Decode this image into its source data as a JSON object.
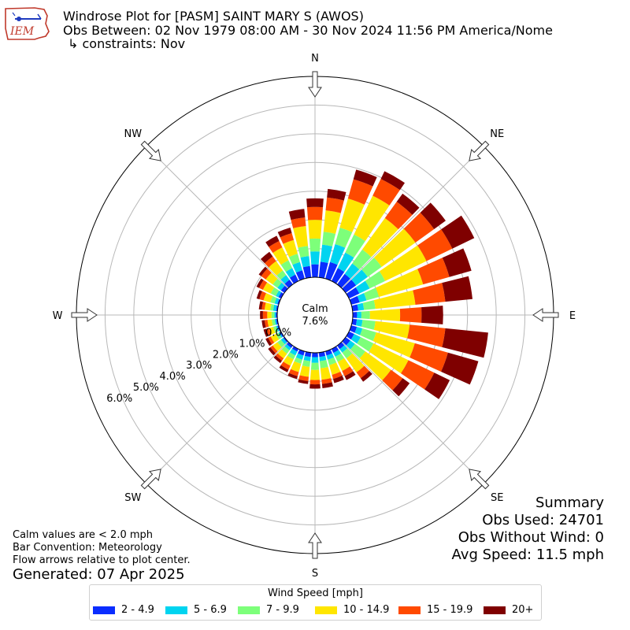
{
  "header": {
    "title": "Windrose Plot for [PASM] SAINT MARY S (AWOS)",
    "obs_between": "Obs Between: 02 Nov 1979 08:00 AM - 30 Nov 2024 11:56 PM America/Nome",
    "constraints": "↳ constraints: Nov",
    "logo_text": "IEM"
  },
  "notes": {
    "calm": "Calm values are < 2.0 mph",
    "bar_convention": "Bar Convention: Meteorology",
    "flow": "Flow arrows relative to plot center.",
    "generated": "Generated: 07 Apr 2025"
  },
  "summary": {
    "title": "Summary",
    "obs_used": "Obs Used: 24701",
    "obs_without_wind": "Obs Without Wind: 0",
    "avg_speed": "Avg Speed: 11.5 mph"
  },
  "legend": {
    "title": "Wind Speed [mph]",
    "items": [
      {
        "label": "2 - 4.9",
        "color": "#0a2dff"
      },
      {
        "label": "5 - 6.9",
        "color": "#00d4f0"
      },
      {
        "label": "7 - 9.9",
        "color": "#7dff7a"
      },
      {
        "label": "10 - 14.9",
        "color": "#ffe600"
      },
      {
        "label": "15 - 19.9",
        "color": "#ff4a00"
      },
      {
        "label": "20+",
        "color": "#7f0000"
      }
    ]
  },
  "chart_data": {
    "type": "windrose",
    "calm_label": "Calm",
    "calm_value": "7.6%",
    "center_offset_pct": 1.0,
    "r_max_pct": 7.0,
    "radial_ticks": [
      0,
      1,
      2,
      3,
      4,
      5,
      6
    ],
    "radial_tick_labels": [
      "0.0%",
      "1.0%",
      "2.0%",
      "3.0%",
      "4.0%",
      "5.0%",
      "6.0%"
    ],
    "compass_labels": [
      "N",
      "NE",
      "E",
      "SE",
      "S",
      "SW",
      "W",
      "NW"
    ],
    "speed_bins": [
      "2 - 4.9",
      "5 - 6.9",
      "7 - 9.9",
      "10 - 14.9",
      "15 - 19.9",
      "20+"
    ],
    "bin_colors": [
      "#0a2dff",
      "#00d4f0",
      "#7dff7a",
      "#ffe600",
      "#ff4a00",
      "#7f0000"
    ],
    "directions_deg": [
      0,
      10,
      20,
      30,
      40,
      50,
      60,
      70,
      80,
      90,
      100,
      110,
      120,
      130,
      140,
      150,
      160,
      170,
      180,
      190,
      200,
      210,
      220,
      230,
      240,
      250,
      260,
      270,
      280,
      290,
      300,
      310,
      320,
      330,
      340,
      350
    ],
    "cumulative": [
      [
        0.45,
        0.9,
        1.35,
        2.0,
        2.45,
        2.75
      ],
      [
        0.55,
        1.15,
        1.6,
        2.35,
        2.8,
        3.1
      ],
      [
        0.6,
        1.25,
        1.85,
        2.9,
        3.6,
        3.95
      ],
      [
        0.5,
        1.1,
        1.8,
        3.3,
        3.95,
        4.25
      ],
      [
        0.45,
        0.9,
        1.5,
        2.85,
        3.55,
        3.9
      ],
      [
        0.45,
        0.95,
        1.55,
        3.0,
        3.8,
        4.3
      ],
      [
        0.4,
        0.8,
        1.4,
        3.0,
        4.0,
        4.85
      ],
      [
        0.3,
        0.55,
        1.0,
        2.6,
        3.55,
        4.35
      ],
      [
        0.2,
        0.4,
        0.8,
        2.2,
        3.25,
        4.2
      ],
      [
        0.15,
        0.3,
        0.6,
        1.65,
        2.4,
        3.15
      ],
      [
        0.15,
        0.35,
        0.8,
        2.0,
        3.25,
        4.75
      ],
      [
        0.2,
        0.4,
        0.9,
        2.3,
        3.5,
        4.6
      ],
      [
        0.2,
        0.45,
        0.95,
        2.3,
        3.3,
        3.9
      ],
      [
        0.2,
        0.4,
        0.85,
        1.95,
        2.45,
        2.75
      ],
      [
        0.15,
        0.3,
        0.55,
        1.15,
        1.4,
        1.55
      ],
      [
        0.15,
        0.3,
        0.5,
        0.85,
        1.05,
        1.2
      ],
      [
        0.15,
        0.3,
        0.5,
        0.85,
        1.0,
        1.15
      ],
      [
        0.15,
        0.3,
        0.55,
        0.95,
        1.1,
        1.25
      ],
      [
        0.15,
        0.35,
        0.6,
        0.95,
        1.1,
        1.25
      ],
      [
        0.15,
        0.3,
        0.5,
        0.85,
        1.0,
        1.1
      ],
      [
        0.15,
        0.3,
        0.45,
        0.75,
        0.9,
        1.0
      ],
      [
        0.1,
        0.25,
        0.4,
        0.65,
        0.8,
        0.9
      ],
      [
        0.1,
        0.2,
        0.35,
        0.55,
        0.65,
        0.75
      ],
      [
        0.05,
        0.15,
        0.3,
        0.5,
        0.6,
        0.7
      ],
      [
        0.05,
        0.1,
        0.2,
        0.4,
        0.5,
        0.6
      ],
      [
        0.05,
        0.1,
        0.2,
        0.35,
        0.45,
        0.55
      ],
      [
        0.05,
        0.1,
        0.2,
        0.35,
        0.45,
        0.55
      ],
      [
        0.05,
        0.1,
        0.2,
        0.35,
        0.5,
        0.6
      ],
      [
        0.05,
        0.15,
        0.25,
        0.45,
        0.55,
        0.65
      ],
      [
        0.05,
        0.15,
        0.3,
        0.55,
        0.7,
        0.8
      ],
      [
        0.1,
        0.2,
        0.4,
        0.7,
        0.85,
        0.95
      ],
      [
        0.15,
        0.3,
        0.5,
        0.8,
        1.0,
        1.1
      ],
      [
        0.2,
        0.4,
        0.6,
        1.0,
        1.2,
        1.4
      ],
      [
        0.25,
        0.5,
        0.8,
        1.3,
        1.55,
        1.75
      ],
      [
        0.3,
        0.6,
        0.9,
        1.4,
        1.65,
        1.85
      ],
      [
        0.4,
        0.75,
        1.1,
        1.8,
        2.1,
        2.4
      ]
    ]
  }
}
